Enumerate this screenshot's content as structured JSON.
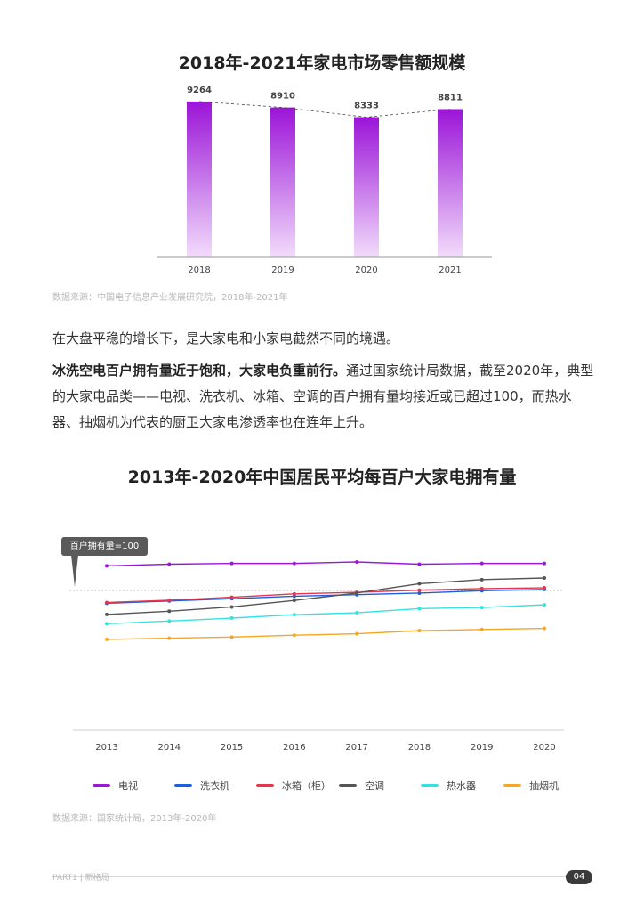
{
  "chart1": {
    "title": "2018年-2021年家电市场零售额规模",
    "source": "数据来源：中国电子信息产业发展研究院，2018年-2021年"
  },
  "para1": "在大盘平稳的增长下，是大家电和小家电截然不同的境遇。",
  "para2": {
    "bold": "冰洗空电百户拥有量近于饱和，大家电负重前行。",
    "text": "通过国家统计局数据，截至2020年，典型的大家电品类——电视、洗衣机、冰箱、空调的百户拥有量均接近或已超过100，而热水器、抽烟机为代表的厨卫大家电渗透率也在连年上升。"
  },
  "chart2": {
    "title": "2013年-2020年中国居民平均每百户大家电拥有量",
    "tooltip": "百户拥有量=100",
    "source": "数据来源：国家统计局，2013年-2020年"
  },
  "footer": {
    "left": "PART1  |  新格局",
    "page": "04"
  },
  "colors": {
    "bar_top": "#9b14d8",
    "bar_bottom": "#f2dcfb",
    "tv": "#9b19d6",
    "washer": "#1a5fe0",
    "fridge": "#e5364f",
    "ac": "#555555",
    "heater": "#35e2e2",
    "hood": "#f5a623"
  },
  "chart_data": [
    {
      "type": "bar",
      "title": "2018年-2021年家电市场零售额规模",
      "categories": [
        "2018",
        "2019",
        "2020",
        "2021"
      ],
      "values": [
        9264,
        8910,
        8333,
        8811
      ],
      "labels": [
        "9264",
        "8910",
        "8333",
        "8811"
      ],
      "ylim": [
        0,
        10000
      ],
      "trendline": "dashed"
    },
    {
      "type": "line",
      "title": "2013年-2020年中国居民平均每百户大家电拥有量",
      "x": [
        "2013",
        "2014",
        "2015",
        "2016",
        "2017",
        "2018",
        "2019",
        "2020"
      ],
      "reference_line": 100,
      "ylim": [
        25,
        130
      ],
      "series": [
        {
          "name": "电视",
          "color_key": "tv",
          "values": [
            122.3,
            123.8,
            124.5,
            124.5,
            125.8,
            123.8,
            124.5,
            124.5
          ]
        },
        {
          "name": "洗衣机",
          "color_key": "washer",
          "values": [
            88.4,
            90.5,
            92.6,
            94.8,
            96.2,
            97.6,
            99.8,
            100.9
          ]
        },
        {
          "name": "冰箱（柜）",
          "color_key": "fridge",
          "values": [
            89.1,
            91.2,
            93.9,
            96.9,
            98.3,
            100.3,
            101.7,
            102.4
          ]
        },
        {
          "name": "空调",
          "color_key": "ac",
          "values": [
            78.3,
            81.2,
            85.1,
            91.0,
            97.7,
            106.1,
            109.8,
            111.3
          ]
        },
        {
          "name": "热水器",
          "color_key": "heater",
          "values": [
            69.9,
            72.3,
            75.0,
            78.1,
            79.8,
            83.6,
            84.6,
            87.0
          ]
        },
        {
          "name": "抽烟机",
          "color_key": "hood",
          "values": [
            55.7,
            56.8,
            57.8,
            59.5,
            60.8,
            63.6,
            64.7,
            65.7
          ]
        }
      ]
    }
  ]
}
